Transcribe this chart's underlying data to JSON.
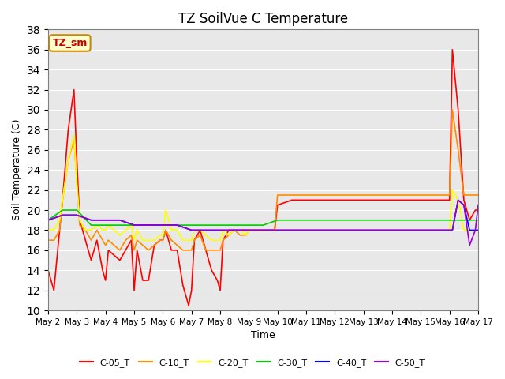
{
  "title": "TZ SoilVue C Temperature",
  "xlabel": "Time",
  "ylabel": "Soil Temperature (C)",
  "ylim": [
    10,
    38
  ],
  "xlim": [
    0,
    15
  ],
  "x_tick_labels": [
    "May 2",
    "May 3",
    "May 4",
    "May 5",
    "May 6",
    "May 7",
    "May 8",
    "May 9",
    "May 10",
    "May 11",
    "May 12",
    "May 13",
    "May 14",
    "May 15",
    "May 16",
    "May 17"
  ],
  "legend_box_label": "TZ_sm",
  "background_color": "#e8e8e8",
  "series": {
    "C-05_T": {
      "color": "#ff0000",
      "x": [
        0,
        0.2,
        0.4,
        0.5,
        0.7,
        0.9,
        1.0,
        1.1,
        1.3,
        1.5,
        1.7,
        1.9,
        2.0,
        2.1,
        2.3,
        2.5,
        2.7,
        2.9,
        3.0,
        3.1,
        3.3,
        3.5,
        3.7,
        3.9,
        4.0,
        4.1,
        4.3,
        4.5,
        4.7,
        4.9,
        5.0,
        5.1,
        5.3,
        5.5,
        5.7,
        5.9,
        6.0,
        6.1,
        6.3,
        6.5,
        6.7,
        6.9,
        7.0,
        7.1,
        7.3,
        7.5,
        7.7,
        7.9,
        8.0,
        8.5,
        9.0,
        9.5,
        10.0,
        10.5,
        11.0,
        11.5,
        12.0,
        12.5,
        13.0,
        13.5,
        14.0,
        14.1,
        14.3,
        14.5,
        14.7,
        14.9,
        15.0
      ],
      "y": [
        14,
        12,
        18,
        21,
        28,
        32,
        25,
        19,
        17,
        15,
        17,
        14,
        13,
        16,
        15.5,
        15,
        16,
        17,
        12,
        16,
        13,
        13,
        16.5,
        17,
        17,
        18,
        16,
        16,
        12.5,
        10.5,
        12,
        17,
        18,
        16,
        14,
        13,
        12,
        17,
        18,
        18,
        18,
        18,
        18,
        18,
        18,
        18,
        18,
        18,
        20.5,
        21,
        21,
        21,
        21,
        21,
        21,
        21,
        21,
        21,
        21,
        21,
        21,
        36,
        30,
        21,
        19,
        20,
        20
      ]
    },
    "C-10_T": {
      "color": "#ff8c00",
      "x": [
        0,
        0.2,
        0.4,
        0.5,
        0.7,
        0.9,
        1.0,
        1.1,
        1.3,
        1.5,
        1.7,
        1.9,
        2.0,
        2.1,
        2.3,
        2.5,
        2.7,
        2.9,
        3.0,
        3.1,
        3.3,
        3.5,
        3.7,
        3.9,
        4.0,
        4.1,
        4.3,
        4.5,
        4.7,
        4.9,
        5.0,
        5.1,
        5.3,
        5.5,
        5.7,
        5.9,
        6.0,
        6.1,
        6.3,
        6.5,
        6.7,
        6.9,
        7.0,
        7.1,
        7.3,
        7.5,
        7.7,
        7.9,
        8.0,
        8.5,
        9.0,
        9.5,
        10.0,
        10.5,
        11.0,
        11.5,
        12.0,
        12.5,
        13.0,
        13.5,
        14.0,
        14.1,
        14.3,
        14.5,
        14.7,
        14.9,
        15.0
      ],
      "y": [
        17,
        17,
        18,
        21,
        25,
        27,
        23,
        18.5,
        18,
        17,
        18,
        17,
        16.5,
        17,
        16.5,
        16,
        17,
        17.5,
        16,
        17,
        16.5,
        16,
        16.5,
        17,
        17,
        18,
        17,
        16.5,
        16,
        16,
        16,
        17,
        17.5,
        16,
        16,
        16,
        16,
        17,
        17.5,
        18,
        17.5,
        17.5,
        18,
        18,
        18,
        18,
        18,
        18,
        21.5,
        21.5,
        21.5,
        21.5,
        21.5,
        21.5,
        21.5,
        21.5,
        21.5,
        21.5,
        21.5,
        21.5,
        21.5,
        30,
        26,
        21.5,
        21.5,
        21.5,
        21.5
      ]
    },
    "C-20_T": {
      "color": "#ffff00",
      "x": [
        0,
        0.2,
        0.4,
        0.5,
        0.7,
        0.9,
        1.0,
        1.1,
        1.3,
        1.5,
        1.7,
        1.9,
        2.0,
        2.1,
        2.3,
        2.5,
        2.7,
        2.9,
        3.0,
        3.1,
        3.3,
        3.5,
        3.7,
        3.9,
        4.0,
        4.1,
        4.3,
        4.5,
        4.7,
        4.9,
        5.0,
        5.1,
        5.3,
        5.5,
        5.7,
        5.9,
        6.0,
        6.1,
        6.3,
        6.5,
        6.7,
        6.9,
        7.0,
        7.1,
        7.3,
        7.5,
        7.7,
        7.9,
        8.0,
        8.5,
        9.0,
        9.5,
        10.0,
        10.5,
        11.0,
        11.5,
        12.0,
        12.5,
        13.0,
        13.5,
        14.0,
        14.1,
        14.3,
        14.5,
        14.7,
        14.9,
        15.0
      ],
      "y": [
        18,
        18,
        19,
        21,
        25,
        27.5,
        22.5,
        19,
        18,
        18,
        18.5,
        18,
        18,
        18.5,
        18,
        17.5,
        18,
        18.5,
        17,
        18,
        17,
        17,
        17,
        17.5,
        17.5,
        20,
        18,
        18,
        17,
        17,
        17,
        18,
        18,
        17.5,
        17,
        17,
        17,
        18,
        17.5,
        18,
        18,
        17.5,
        18,
        18,
        18,
        18,
        18,
        18,
        18,
        18,
        18,
        18,
        18,
        18,
        18,
        18,
        18,
        18,
        18,
        18,
        18,
        22,
        21,
        18,
        18,
        18,
        18
      ]
    },
    "C-30_T": {
      "color": "#00cc00",
      "x": [
        0,
        0.5,
        1.0,
        1.5,
        2.0,
        2.5,
        3.0,
        3.5,
        4.0,
        4.5,
        5.0,
        5.5,
        6.0,
        6.5,
        7.0,
        7.5,
        8.0,
        8.5,
        9.0,
        9.5,
        10.0,
        10.5,
        11.0,
        11.5,
        12.0,
        12.5,
        13.0,
        13.5,
        14.0,
        14.1,
        14.5,
        14.9,
        15.0
      ],
      "y": [
        19,
        20,
        20,
        18.5,
        18.5,
        18.5,
        18.5,
        18.5,
        18.5,
        18.5,
        18.5,
        18.5,
        18.5,
        18.5,
        18.5,
        18.5,
        19,
        19,
        19,
        19,
        19,
        19,
        19,
        19,
        19,
        19,
        19,
        19,
        19,
        19,
        19,
        19,
        19
      ]
    },
    "C-40_T": {
      "color": "#0000ff",
      "x": [
        0,
        0.5,
        1.0,
        1.5,
        2.0,
        2.5,
        3.0,
        3.5,
        4.0,
        4.5,
        5.0,
        5.5,
        6.0,
        6.5,
        7.0,
        7.5,
        8.0,
        8.5,
        9.0,
        9.5,
        10.0,
        10.5,
        11.0,
        11.5,
        12.0,
        12.5,
        13.0,
        13.5,
        14.0,
        14.1,
        14.3,
        14.5,
        14.7,
        14.9,
        15.0
      ],
      "y": [
        19,
        19.5,
        19.5,
        19,
        19,
        19,
        18.5,
        18.5,
        18.5,
        18.5,
        18,
        18,
        18,
        18,
        18,
        18,
        18,
        18,
        18,
        18,
        18,
        18,
        18,
        18,
        18,
        18,
        18,
        18,
        18,
        18,
        21,
        20.5,
        18,
        18,
        18
      ]
    },
    "C-50_T": {
      "color": "#9900cc",
      "x": [
        0,
        0.5,
        1.0,
        1.5,
        2.0,
        2.5,
        3.0,
        3.5,
        4.0,
        4.5,
        5.0,
        5.5,
        6.0,
        6.5,
        7.0,
        7.5,
        8.0,
        8.5,
        9.0,
        9.5,
        10.0,
        10.5,
        11.0,
        11.5,
        12.0,
        12.5,
        13.0,
        13.5,
        14.0,
        14.1,
        14.3,
        14.5,
        14.7,
        14.9,
        15.0
      ],
      "y": [
        19,
        19.5,
        19.5,
        19,
        19,
        19,
        18.5,
        18.5,
        18.5,
        18.5,
        18,
        18,
        18,
        18,
        18,
        18,
        18,
        18,
        18,
        18,
        18,
        18,
        18,
        18,
        18,
        18,
        18,
        18,
        18,
        18,
        21,
        20.5,
        16.5,
        18,
        20.5
      ]
    }
  }
}
